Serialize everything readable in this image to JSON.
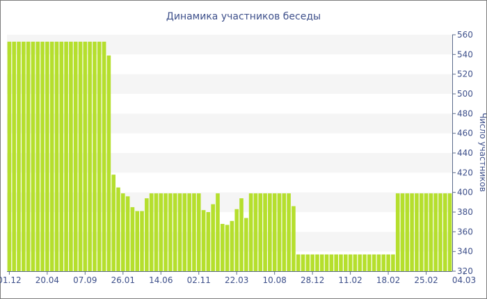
{
  "chart_data": {
    "type": "bar",
    "title": "Динамика участников беседы",
    "ylabel": "Число участников",
    "xlabel": "",
    "ylim": [
      320,
      560
    ],
    "yticks": [
      320,
      340,
      360,
      380,
      400,
      420,
      440,
      460,
      480,
      500,
      520,
      540,
      560
    ],
    "x_tick_labels": [
      "01.12",
      "20.04",
      "07.09",
      "26.01",
      "14.06",
      "02.11",
      "22.03",
      "10.08",
      "28.12",
      "11.02",
      "18.02",
      "25.02",
      "04.03"
    ],
    "x_tick_bar_index": [
      0,
      8,
      16,
      24,
      32,
      40,
      48,
      56,
      64,
      72,
      80,
      88,
      96
    ],
    "grid": true,
    "bar_color": "#b5df2d",
    "values": [
      553,
      553,
      553,
      553,
      553,
      553,
      553,
      553,
      553,
      553,
      553,
      553,
      553,
      553,
      553,
      553,
      553,
      553,
      553,
      553,
      553,
      539,
      418,
      405,
      399,
      396,
      385,
      381,
      381,
      394,
      399,
      399,
      399,
      399,
      399,
      399,
      399,
      399,
      399,
      399,
      399,
      382,
      380,
      388,
      399,
      368,
      367,
      371,
      383,
      394,
      374,
      399,
      399,
      399,
      399,
      399,
      399,
      399,
      399,
      399,
      386,
      337,
      337,
      337,
      337,
      337,
      337,
      337,
      337,
      337,
      337,
      337,
      337,
      337,
      337,
      337,
      337,
      337,
      337,
      337,
      337,
      337,
      399,
      399,
      399,
      399,
      399,
      399,
      399,
      399,
      399,
      399,
      399,
      399
    ]
  }
}
